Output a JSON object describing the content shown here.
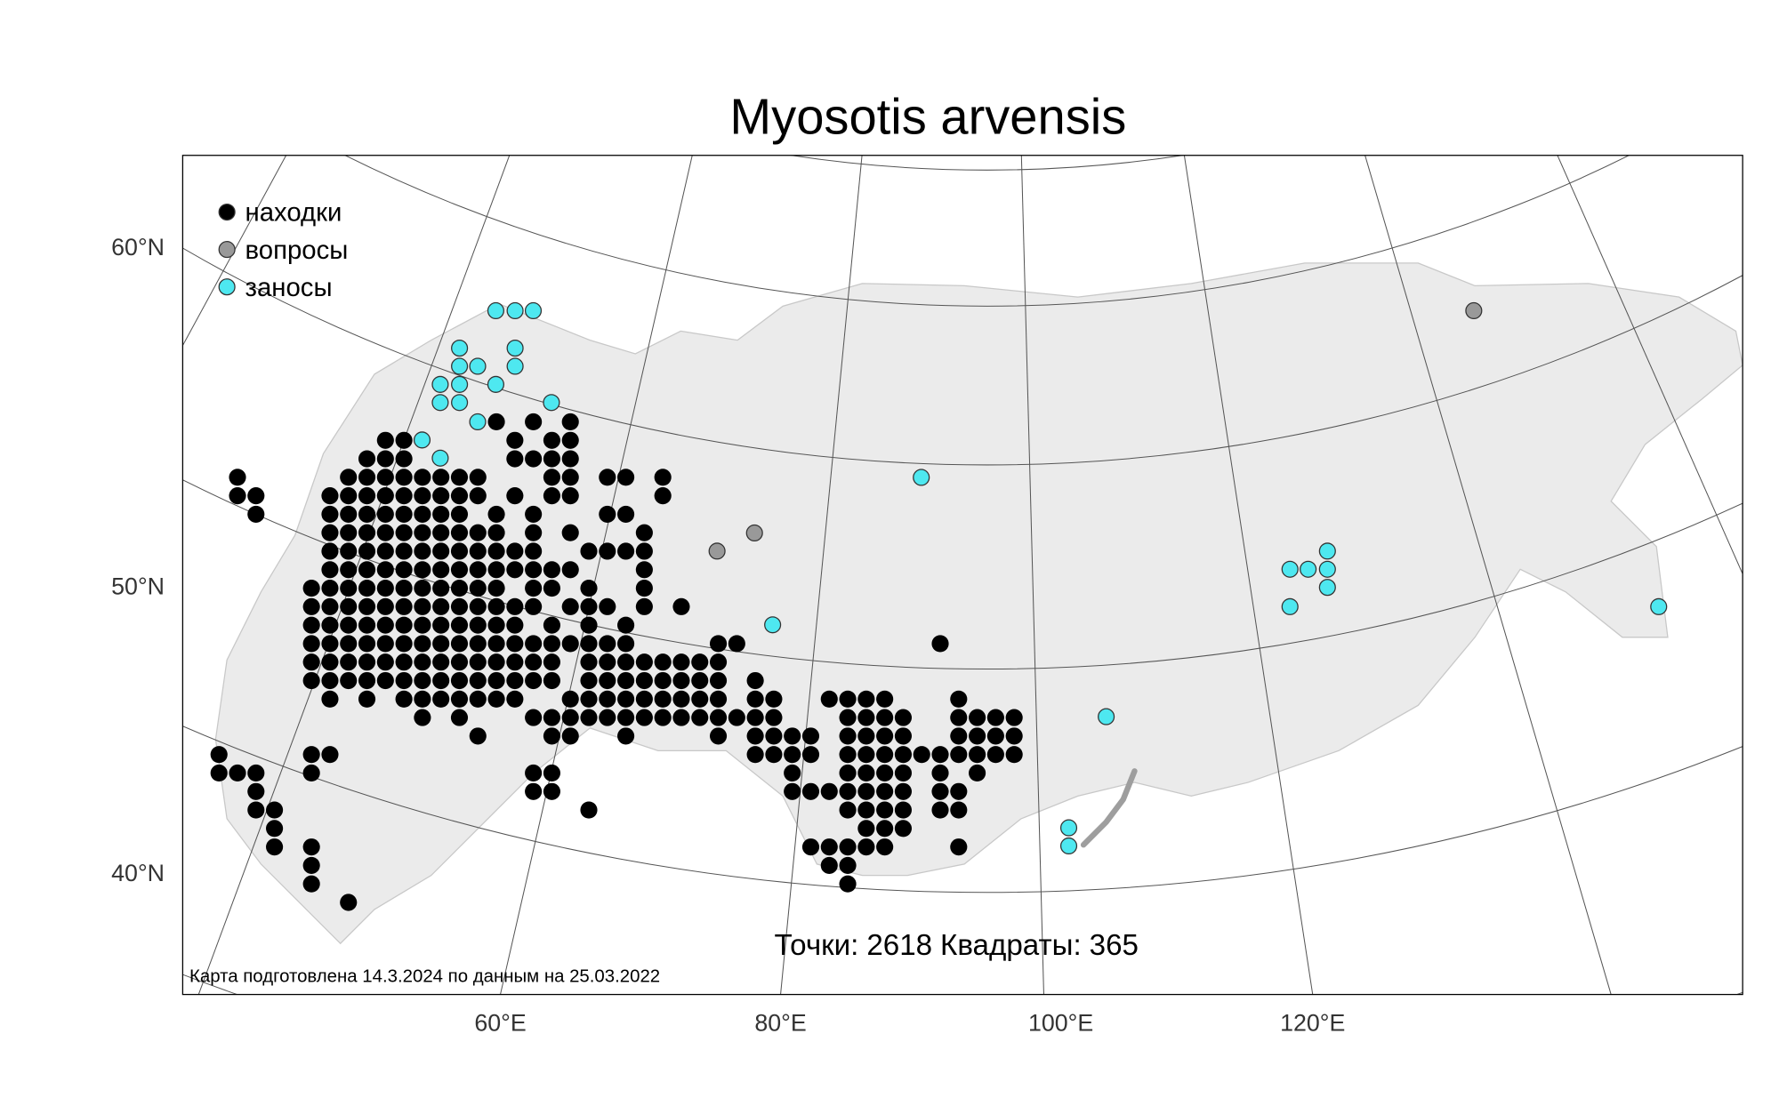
{
  "title": "Myosotis arvensis",
  "legend": [
    {
      "label": "находки",
      "color": "#000000"
    },
    {
      "label": "вопросы",
      "color": "#999999"
    },
    {
      "label": "заносы",
      "color": "#4ee8f0"
    }
  ],
  "lat_labels": [
    "60°N",
    "50°N",
    "40°N"
  ],
  "lon_labels": [
    "60°E",
    "80°E",
    "100°E",
    "120°E"
  ],
  "stats": [
    {
      "label": "Точки:",
      "value": 2618
    },
    {
      "label": "Квадраты:",
      "value": 365
    }
  ],
  "footer": "Карта подготовлена 14.3.2024 по данным на 25.03.2022"
}
